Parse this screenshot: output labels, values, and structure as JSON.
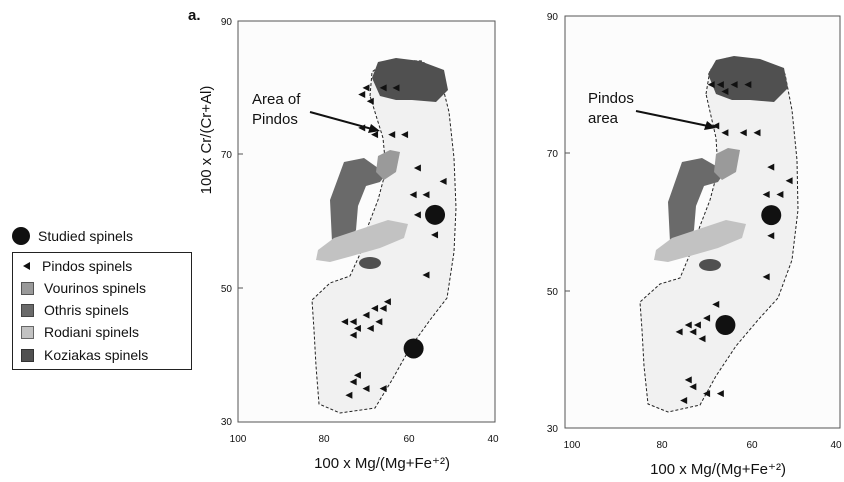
{
  "figure": {
    "panel_letter": "a.",
    "annotations": [
      "Area of\nPindos",
      "Pindos\narea"
    ]
  },
  "legend": {
    "items": [
      {
        "label": "Studied spinels",
        "symbol": "filled-circle-icon",
        "color": "#111111"
      },
      {
        "label": "Pindos spinels",
        "symbol": "triangle-left-icon",
        "color": "#111111"
      },
      {
        "label": "Vourinos spinels",
        "symbol": "square-icon",
        "color": "#9a9a9a"
      },
      {
        "label": "Othris spinels",
        "symbol": "square-icon",
        "color": "#6a6a6a"
      },
      {
        "label": "Rodiani spinels",
        "symbol": "square-icon",
        "color": "#c2c2c2"
      },
      {
        "label": "Koziakas spinels",
        "symbol": "square-icon",
        "color": "#505050"
      }
    ]
  },
  "colors": {
    "pindos_field": "#f1f1f1",
    "vourinos": "#9a9a9a",
    "othris": "#6a6a6a",
    "rodiani": "#c2c2c2",
    "koziakas": "#505050",
    "symbols": "#111111"
  },
  "chart_data": [
    {
      "type": "scatter",
      "title": "",
      "xlabel": "100 x Mg/(Mg+Fe⁺²)",
      "ylabel": "100 x Cr/(Cr+Al)",
      "xlim": [
        100,
        40
      ],
      "ylim": [
        30,
        90
      ],
      "xticks": [
        "100",
        "80",
        "60",
        "40"
      ],
      "yticks": [
        "90",
        "70",
        "50",
        "30"
      ],
      "series": [
        {
          "name": "Studied spinels",
          "marker": "circle",
          "points": [
            [
              54,
              61
            ],
            [
              59,
              41
            ]
          ]
        },
        {
          "name": "Pindos spinels",
          "marker": "triangle-left",
          "points": [
            [
              70,
              80
            ],
            [
              66,
              80
            ],
            [
              63,
              80
            ],
            [
              71,
              79
            ],
            [
              69,
              78
            ],
            [
              71,
              74
            ],
            [
              68,
              73
            ],
            [
              64,
              73
            ],
            [
              61,
              73
            ],
            [
              58,
              68
            ],
            [
              52,
              66
            ],
            [
              59,
              64
            ],
            [
              56,
              64
            ],
            [
              58,
              61
            ],
            [
              54,
              58
            ],
            [
              56,
              52
            ],
            [
              65,
              48
            ],
            [
              66,
              47
            ],
            [
              68,
              47
            ],
            [
              70,
              46
            ],
            [
              73,
              45
            ],
            [
              75,
              45
            ],
            [
              67,
              45
            ],
            [
              69,
              44
            ],
            [
              72,
              44
            ],
            [
              73,
              43
            ],
            [
              72,
              37
            ],
            [
              73,
              36
            ],
            [
              70,
              35
            ],
            [
              66,
              35
            ],
            [
              74,
              34
            ]
          ]
        }
      ]
    },
    {
      "type": "scatter",
      "title": "",
      "xlabel": "100 x Mg/(Mg+Fe⁺²)",
      "ylabel": "",
      "xlim": [
        100,
        40
      ],
      "ylim": [
        30,
        90
      ],
      "xticks": [
        "100",
        "80",
        "60",
        "40"
      ],
      "yticks": [
        "90",
        "70",
        "50",
        "30"
      ],
      "series": [
        {
          "name": "Studied spinels",
          "marker": "circle",
          "points": [
            [
              55,
              61
            ],
            [
              65,
              45
            ]
          ]
        },
        {
          "name": "Pindos spinels",
          "marker": "triangle-left",
          "points": [
            [
              66,
              80
            ],
            [
              63,
              80
            ],
            [
              60,
              80
            ],
            [
              65,
              79
            ],
            [
              68,
              80
            ],
            [
              67,
              74
            ],
            [
              65,
              73
            ],
            [
              61,
              73
            ],
            [
              58,
              73
            ],
            [
              55,
              68
            ],
            [
              51,
              66
            ],
            [
              56,
              64
            ],
            [
              53,
              64
            ],
            [
              55,
              58
            ],
            [
              56,
              52
            ],
            [
              67,
              48
            ],
            [
              69,
              46
            ],
            [
              71,
              45
            ],
            [
              73,
              45
            ],
            [
              75,
              44
            ],
            [
              72,
              44
            ],
            [
              70,
              43
            ],
            [
              73,
              37
            ],
            [
              72,
              36
            ],
            [
              69,
              35
            ],
            [
              66,
              35
            ],
            [
              74,
              34
            ]
          ]
        }
      ]
    }
  ]
}
